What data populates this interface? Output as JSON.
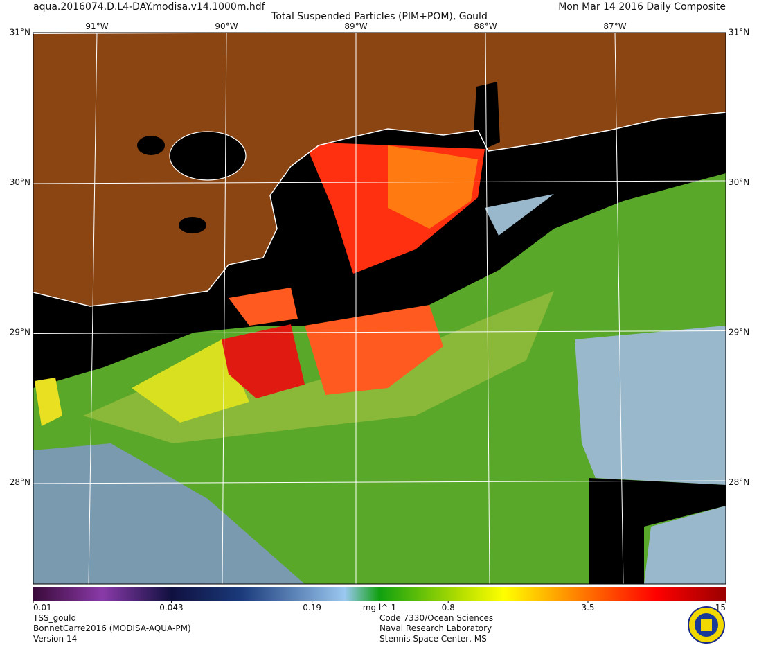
{
  "header": {
    "file": "aqua.2016074.D.L4-DAY.modisa.v14.1000m.hdf",
    "title": "Total Suspended Particles (PIM+POM), Gould",
    "date": "Mon Mar 14 2016 Daily Composite"
  },
  "map": {
    "lat_ticks": [
      {
        "value": 31,
        "label": "31°N"
      },
      {
        "value": 30,
        "label": "30°N"
      },
      {
        "value": 29,
        "label": "29°N"
      },
      {
        "value": 28,
        "label": "28°N"
      }
    ],
    "lon_ticks": [
      {
        "value": -91,
        "label": "91°W"
      },
      {
        "value": -90,
        "label": "90°W"
      },
      {
        "value": -89,
        "label": "89°W"
      },
      {
        "value": -88,
        "label": "88°W"
      },
      {
        "value": -87,
        "label": "87°W"
      }
    ]
  },
  "colorbar": {
    "scale": "log",
    "lim": [
      0.01,
      15
    ],
    "ticks": [
      0.01,
      0.043,
      0.19,
      0.8,
      3.5,
      15
    ],
    "unit": "mg l^-1"
  },
  "footer": {
    "left": [
      "TSS_gould",
      "BonnetCarre2016 (MODISA-AQUA-PM)",
      "Version 14"
    ],
    "right": [
      "Code 7330/Ocean Sciences",
      "Naval Research Laboratory",
      "Stennis Space Center, MS"
    ]
  }
}
